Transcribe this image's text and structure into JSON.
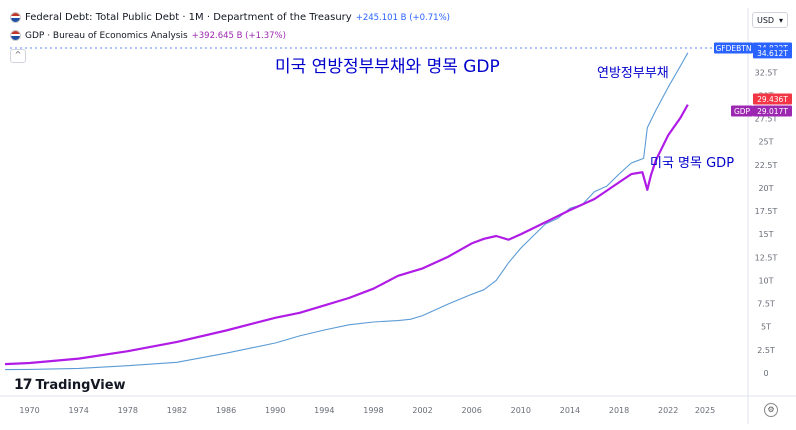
{
  "header": {
    "series1_name": "Federal Debt: Total Public Debt · 1M · Department of the Treasury",
    "series1_change": "+245.101 B (+0.71%)",
    "series2_name": "GDP · Bureau of Economics Analysis",
    "series2_change": "+392.645 B (+1.37%)",
    "currency": "USD",
    "collapse_glyph": "^",
    "currency_glyph": "▾"
  },
  "annotations": {
    "title": "미국 연방정부부채와 명목 GDP",
    "debt_label": "연방정부부채",
    "gdp_label": "미국 명목 GDP"
  },
  "branding": {
    "mark": "17",
    "name": "TradingView"
  },
  "settings_glyph": "⚙",
  "colors": {
    "debt": "#5b9bd5",
    "gdp": "#b01ce6",
    "debt_tag": "#2962ff",
    "gdp_tag": "#9c27b0",
    "price_tag": "#f23645",
    "annotation": "#0000cc"
  },
  "chart_data": {
    "type": "line",
    "x_range": [
      1968,
      2028.5
    ],
    "ylim": [
      -2.5,
      36
    ],
    "y_ticks": [
      "32.5T",
      "30T",
      "27.5T",
      "25T",
      "22.5T",
      "20T",
      "17.5T",
      "15T",
      "12.5T",
      "10T",
      "7.5T",
      "5T",
      "2.5T",
      "0"
    ],
    "y_tick_values": [
      32.5,
      30,
      27.5,
      25,
      22.5,
      20,
      17.5,
      15,
      12.5,
      10,
      7.5,
      5,
      2.5,
      0
    ],
    "x_ticks": [
      "1970",
      "1974",
      "1978",
      "1982",
      "1986",
      "1990",
      "1994",
      "1998",
      "2002",
      "2006",
      "2010",
      "2014",
      "2018",
      "2022",
      "2025"
    ],
    "x_tick_values": [
      1970,
      1974,
      1978,
      1982,
      1986,
      1990,
      1994,
      1998,
      2002,
      2006,
      2010,
      2014,
      2018,
      2022,
      2025
    ],
    "series": [
      {
        "name": "Federal Debt: Total Public Debt",
        "short_name": "GFDEBTN",
        "x": [
          1968,
          1970,
          1974,
          1978,
          1982,
          1986,
          1990,
          1992,
          1994,
          1996,
          1998,
          2000,
          2001,
          2002,
          2004,
          2006,
          2007,
          2008,
          2009,
          2010,
          2011,
          2012,
          2013,
          2014,
          2015,
          2016,
          2017,
          2018,
          2019,
          2020,
          2020.3,
          2021,
          2022,
          2023,
          2023.6
        ],
        "values": [
          0.35,
          0.38,
          0.48,
          0.78,
          1.14,
          2.13,
          3.23,
          4.0,
          4.64,
          5.2,
          5.5,
          5.65,
          5.8,
          6.2,
          7.4,
          8.5,
          9.0,
          10.0,
          11.9,
          13.5,
          14.8,
          16.1,
          16.7,
          17.8,
          18.2,
          19.6,
          20.2,
          21.5,
          22.7,
          23.2,
          26.5,
          28.4,
          30.9,
          33.2,
          34.612
        ],
        "last_label": "34.612T",
        "aux_label": "34.832T"
      },
      {
        "name": "GDP",
        "short_name": "GDP",
        "x": [
          1968,
          1970,
          1974,
          1978,
          1982,
          1986,
          1990,
          1992,
          1994,
          1996,
          1998,
          2000,
          2002,
          2004,
          2006,
          2007,
          2008,
          2009,
          2010,
          2012,
          2014,
          2016,
          2018,
          2019,
          2019.9,
          2020.3,
          2020.6,
          2021,
          2022,
          2023,
          2023.6
        ],
        "values": [
          0.95,
          1.07,
          1.55,
          2.35,
          3.35,
          4.58,
          5.96,
          6.5,
          7.3,
          8.1,
          9.1,
          10.5,
          11.3,
          12.5,
          14.0,
          14.5,
          14.8,
          14.4,
          15.0,
          16.3,
          17.6,
          18.8,
          20.6,
          21.5,
          21.7,
          19.8,
          21.4,
          23.0,
          25.7,
          27.6,
          29.017
        ],
        "last_label": "29.017T",
        "aux_label": "29.436T"
      }
    ]
  }
}
